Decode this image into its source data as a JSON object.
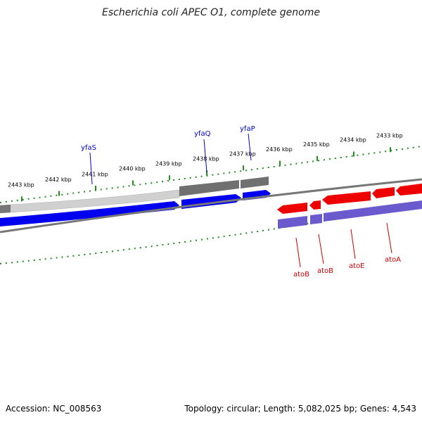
{
  "title": "Escherichia coli APEC O1, complete genome",
  "footer": {
    "accession": "Accession: NC_008563",
    "topology": "Topology: circular; Length: 5,082,025 bp; Genes: 4,543"
  },
  "colors": {
    "forward_gene": "#0000ee",
    "reverse_gene": "#ee0000",
    "forward_cds": "#999999",
    "reverse_cds": "#6a5acd",
    "ticks": "#228b22",
    "backbone": "#777777"
  },
  "scale_labels": [
    "2443 kbp",
    "2442 kbp",
    "2441 kbp",
    "2440 kbp",
    "2439 kbp",
    "2438 kbp",
    "2437 kbp",
    "2436 kbp",
    "2435 kbp",
    "2434 kbp",
    "2433 kbp"
  ],
  "genes_forward": [
    {
      "name": "yfaS",
      "color": "#0000cc"
    },
    {
      "name": "yfaQ",
      "color": "#0000cc"
    },
    {
      "name": "yfaP",
      "color": "#0000cc"
    }
  ],
  "genes_reverse": [
    {
      "name": "atoB",
      "color": "#cc0000"
    },
    {
      "name": "atoB",
      "color": "#cc0000"
    },
    {
      "name": "atoE",
      "color": "#cc0000"
    },
    {
      "name": "atoA",
      "color": "#cc0000"
    }
  ]
}
